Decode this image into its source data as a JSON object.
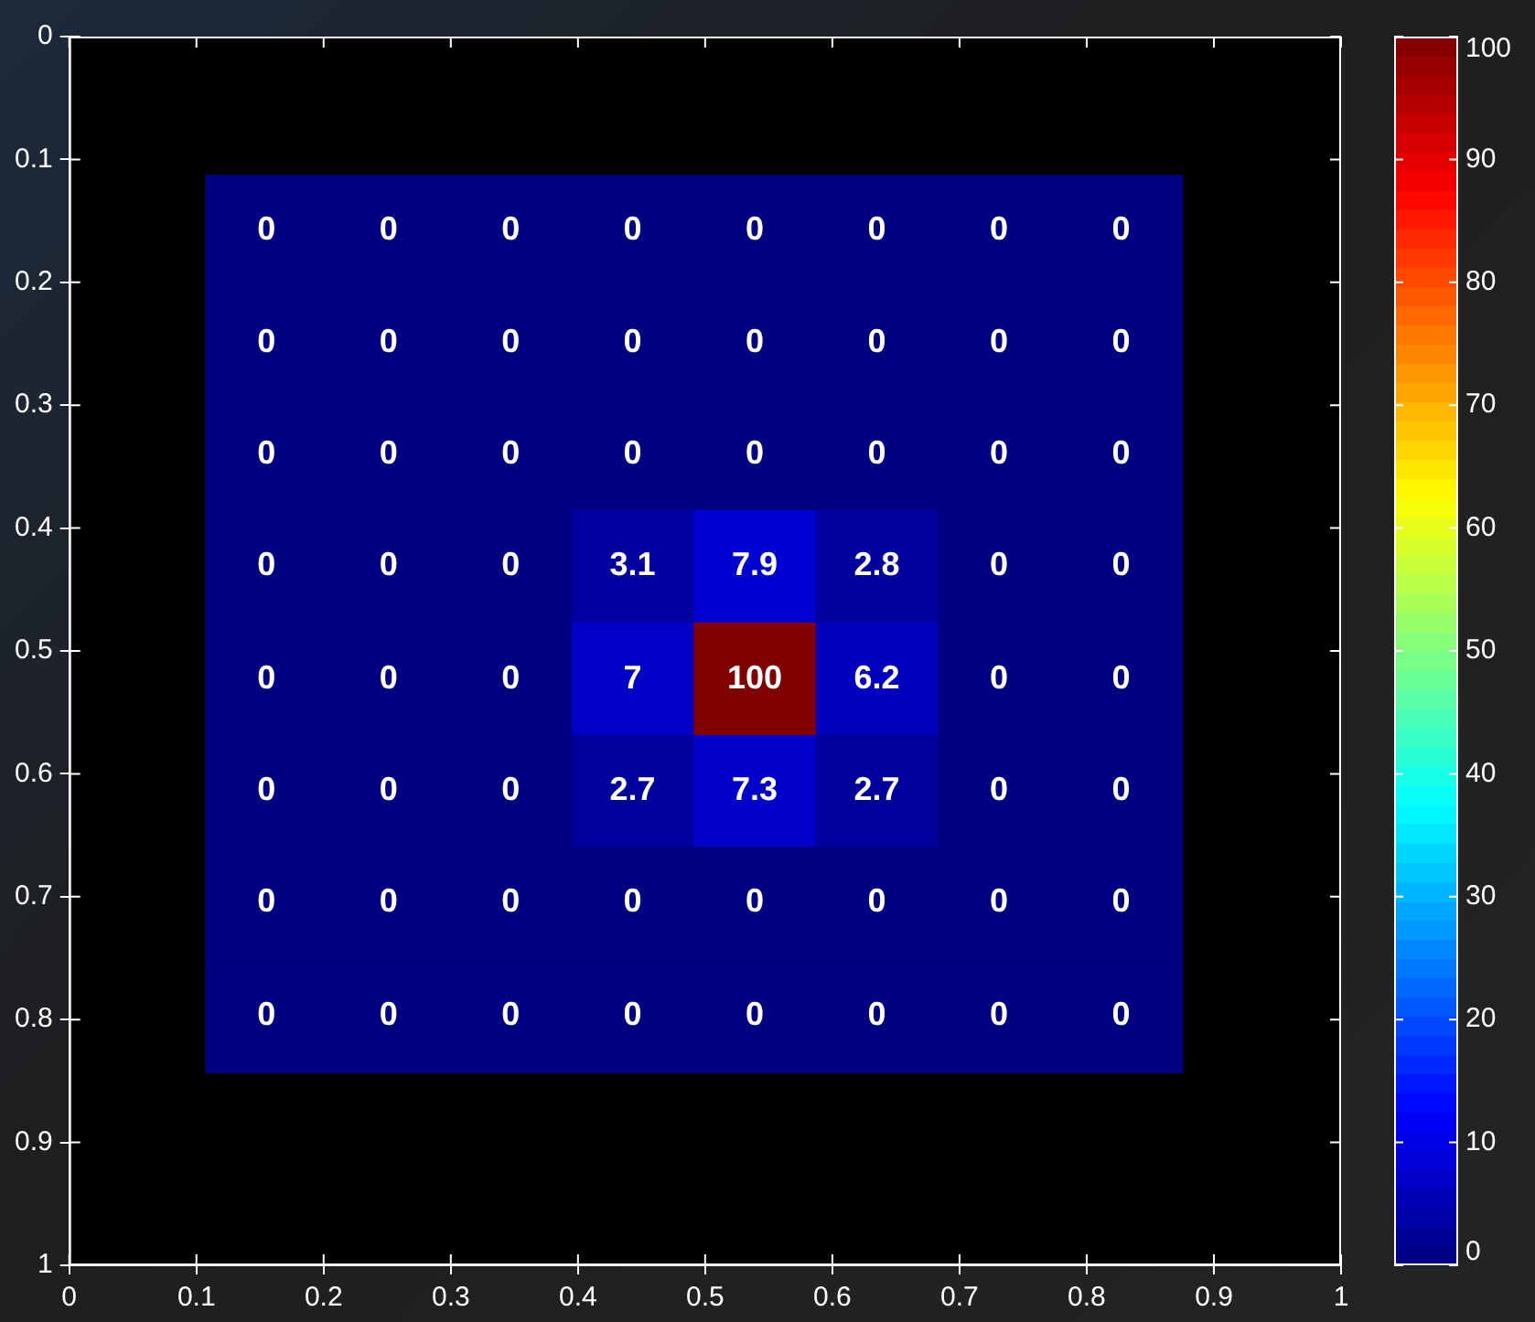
{
  "chart_data": {
    "type": "heatmap",
    "x": [
      0.155,
      0.251,
      0.347,
      0.443,
      0.539,
      0.635,
      0.731,
      0.827
    ],
    "y": [
      0.158,
      0.249,
      0.34,
      0.431,
      0.523,
      0.614,
      0.705,
      0.797
    ],
    "cells": [
      [
        0,
        0,
        0,
        0,
        0,
        0,
        0,
        0
      ],
      [
        0,
        0,
        0,
        0,
        0,
        0,
        0,
        0
      ],
      [
        0,
        0,
        0,
        0,
        0,
        0,
        0,
        0
      ],
      [
        0,
        0,
        0,
        3.1,
        7.9,
        2.8,
        0,
        0
      ],
      [
        0,
        0,
        0,
        7,
        100,
        6.2,
        0,
        0
      ],
      [
        0,
        0,
        0,
        2.7,
        7.3,
        2.7,
        0,
        0
      ],
      [
        0,
        0,
        0,
        0,
        0,
        0,
        0,
        0
      ],
      [
        0,
        0,
        0,
        0,
        0,
        0,
        0,
        0
      ]
    ],
    "data_labels": true,
    "xlim": [
      0,
      1
    ],
    "xticks": [
      0,
      0.1,
      0.2,
      0.3,
      0.4,
      0.5,
      0.6,
      0.7,
      0.8,
      0.9,
      1
    ],
    "ylim": [
      1,
      0
    ],
    "yticks": [
      0,
      0.1,
      0.2,
      0.3,
      0.4,
      0.5,
      0.6,
      0.7,
      0.8,
      0.9,
      1
    ],
    "clim": [
      0,
      100
    ],
    "cticks": [
      0,
      10,
      20,
      30,
      40,
      50,
      60,
      70,
      80,
      90,
      100
    ],
    "grid": false
  }
}
